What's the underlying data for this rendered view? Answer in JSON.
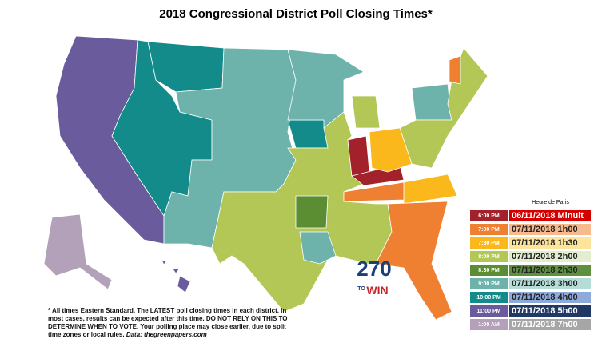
{
  "header": {
    "title": "2018 Congressional District Poll Closing Times*"
  },
  "legend": {
    "title": "Heure de Paris",
    "items": [
      {
        "et": "6:00 PM",
        "paris": "06/11/2018 Minuit",
        "color": "#a3212a",
        "paris_color": "#d40000",
        "paris_text": "#ffffff"
      },
      {
        "et": "7:00 PM",
        "paris": "07/11/2018 1h00",
        "color": "#ef7f31",
        "paris_color": "#f8b98c",
        "paris_text": "#222222"
      },
      {
        "et": "7:30 PM",
        "paris": "07/11/2018 1h30",
        "color": "#fbb81c",
        "paris_color": "#fde49b",
        "paris_text": "#222222"
      },
      {
        "et": "8:00 PM",
        "paris": "07/11/2018 2h00",
        "color": "#b3c757",
        "paris_color": "#e2eecf",
        "paris_text": "#222222"
      },
      {
        "et": "8:30 PM",
        "paris": "07/11/2018 2h30",
        "color": "#5b8e33",
        "paris_color": "#5e9040",
        "paris_text": "#222222"
      },
      {
        "et": "9:00 PM",
        "paris": "07/11/2018 3h00",
        "color": "#6db3ab",
        "paris_color": "#b6dcd8",
        "paris_text": "#222222"
      },
      {
        "et": "10:00 PM",
        "paris": "07/11/2018 4h00",
        "color": "#148b8b",
        "paris_color": "#8eaadb",
        "paris_text": "#222222"
      },
      {
        "et": "11:00 PM",
        "paris": "07/11/2018 5h00",
        "color": "#6a5c9c",
        "paris_color": "#1f3864",
        "paris_text": "#ffffff"
      },
      {
        "et": "1:00 AM",
        "paris": "07/11/2018 7h00",
        "color": "#b2a1b8",
        "paris_color": "#a6a6a6",
        "paris_text": "#ffffff"
      }
    ]
  },
  "footnote": {
    "text": "* All times Eastern Standard. The LATEST poll closing times in each district. In most cases, results can be expected after this time. DO NOT RELY ON THIS TO DETERMINE WHEN TO VOTE. Your polling place may close earlier, due to split time zones or local rules.",
    "source": "Data: thegreenpapers.com"
  },
  "logo": {
    "number": "270",
    "to": "TO",
    "win": "WIN"
  }
}
